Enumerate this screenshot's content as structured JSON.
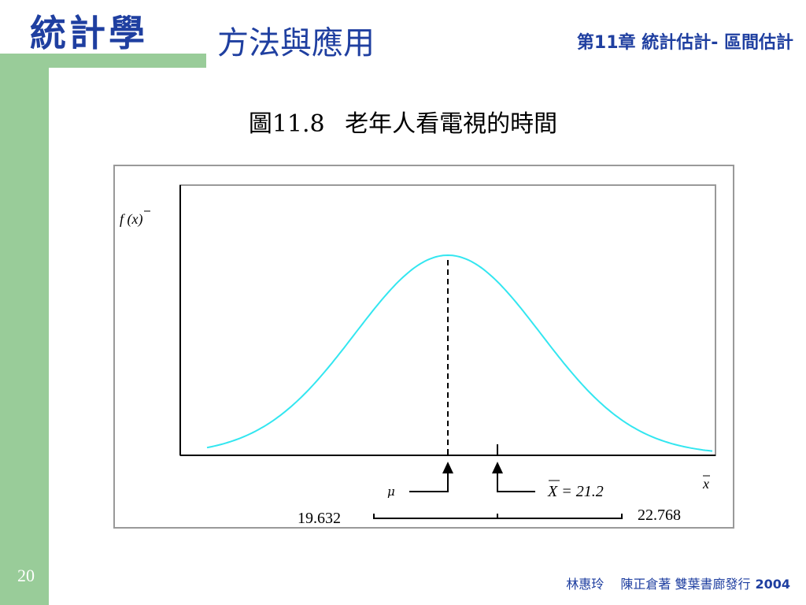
{
  "header": {
    "logo": "統計學",
    "subtitle": "方法與應用",
    "chapter": "第11章 統計估計- 區間估計"
  },
  "figure": {
    "number": "圖11.8",
    "title": "老年人看電視的時間",
    "y_label": "f (x)",
    "x_label": "x",
    "mu_label": "μ",
    "xbar_label": "X = 21.2",
    "lower_value": "19.632",
    "upper_value": "22.768"
  },
  "chart_data": {
    "type": "line",
    "curve": "normal density",
    "mean_marker": "μ",
    "sample_mean": 21.2,
    "interval": [
      19.632,
      22.768
    ],
    "line_color": "#33e6f0"
  },
  "footer": {
    "page_number": "20",
    "authors": "林惠玲　 陳正倉著  雙葉書廊發行",
    "year": "2004"
  }
}
